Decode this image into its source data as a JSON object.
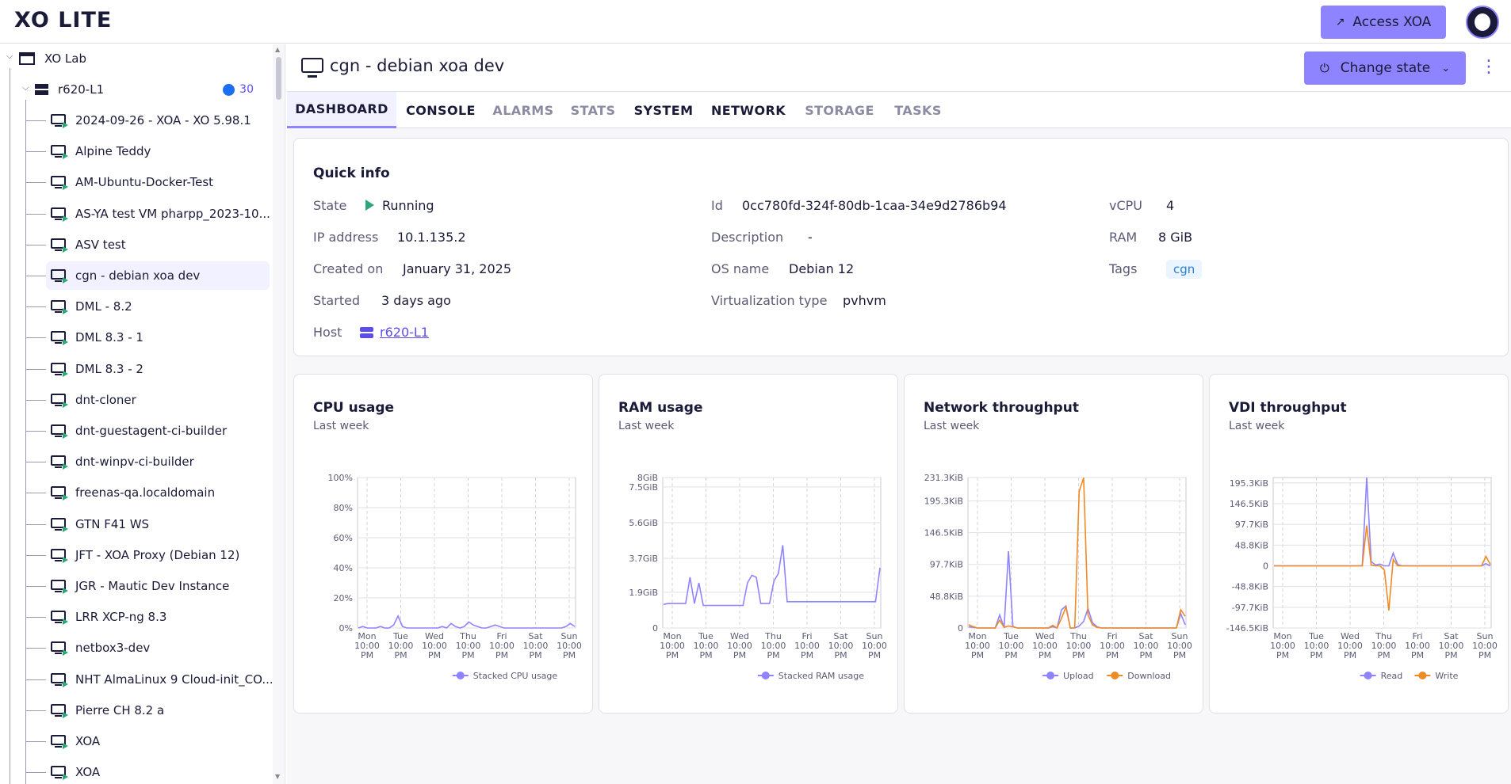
{
  "app": {
    "logo": "XO LITE",
    "access_label": "Access XOA"
  },
  "sidebar": {
    "pool": "XO Lab",
    "host": "r620-L1",
    "host_badge": "30",
    "vms": [
      "2024-09-26 - XOA - XO 5.98.1",
      "Alpine Teddy",
      "AM-Ubuntu-Docker-Test",
      "AS-YA test VM pharpp_2023-10...",
      "ASV test",
      "cgn - debian xoa dev",
      "DML - 8.2",
      "DML 8.3 - 1",
      "DML 8.3 - 2",
      "dnt-cloner",
      "dnt-guestagent-ci-builder",
      "dnt-winpv-ci-builder",
      "freenas-qa.localdomain",
      "GTN F41 WS",
      "JFT - XOA Proxy (Debian 12)",
      "JGR - Mautic Dev Instance",
      "LRR XCP-ng 8.3",
      "netbox3-dev",
      "NHT AlmaLinux 9 Cloud-init_CO...",
      "Pierre CH 8.2 a",
      "XOA",
      "XOA"
    ]
  },
  "vm": {
    "title": "cgn - debian xoa dev",
    "change_state_label": "Change state"
  },
  "tabs": [
    "DASHBOARD",
    "CONSOLE",
    "ALARMS",
    "STATS",
    "SYSTEM",
    "NETWORK",
    "STORAGE",
    "TASKS"
  ],
  "quick_info": {
    "title": "Quick info",
    "state_label": "State",
    "state": "Running",
    "ip_label": "IP address",
    "ip": "10.1.135.2",
    "created_label": "Created on",
    "created": "January 31, 2025",
    "started_label": "Started",
    "started": "3 days ago",
    "host_label": "Host",
    "host": "r620-L1",
    "id_label": "Id",
    "id": "0cc780fd-324f-80db-1caa-34e9d2786b94",
    "desc_label": "Description",
    "desc": "-",
    "os_label": "OS name",
    "os": "Debian 12",
    "virt_label": "Virtualization type",
    "virt": "pvhvm",
    "vcpu_label": "vCPU",
    "vcpu": "4",
    "ram_label": "RAM",
    "ram": "8 GiB",
    "tags_label": "Tags",
    "tag": "cgn"
  },
  "chart_data": [
    {
      "type": "line",
      "title": "CPU usage",
      "subtitle": "Last week",
      "days": [
        "Mon",
        "Tue",
        "Wed",
        "Thu",
        "Fri",
        "Sat",
        "Sun"
      ],
      "time_label": "10:00 PM",
      "yticks": [
        "100%",
        "80%",
        "60%",
        "40%",
        "20%",
        "0%"
      ],
      "ylim": [
        0,
        100
      ],
      "series": [
        {
          "name": "Stacked CPU usage",
          "color": "#8f84ff",
          "values": [
            0,
            1,
            0,
            0,
            0,
            1,
            0,
            0,
            2,
            8,
            1,
            0,
            0,
            0,
            0,
            0,
            0,
            0,
            0,
            1,
            0,
            3,
            1,
            0,
            1,
            4,
            2,
            1,
            0,
            0,
            1,
            2,
            1,
            0,
            0,
            0,
            0,
            0,
            0,
            0,
            0,
            0,
            0,
            0,
            0,
            0,
            0,
            1,
            3,
            1
          ]
        }
      ]
    },
    {
      "type": "line",
      "title": "RAM usage",
      "subtitle": "Last week",
      "days": [
        "Mon",
        "Tue",
        "Wed",
        "Thu",
        "Fri",
        "Sat",
        "Sun"
      ],
      "time_label": "10:00 PM",
      "yticks": [
        "8GiB",
        "7.5GiB",
        "5.6GiB",
        "3.7GiB",
        "1.9GiB",
        "0"
      ],
      "ylim": [
        0,
        8
      ],
      "series": [
        {
          "name": "Stacked RAM usage",
          "color": "#8f84ff",
          "values": [
            1.25,
            1.3,
            1.3,
            1.3,
            1.3,
            1.3,
            2.7,
            1.3,
            2.4,
            1.2,
            1.2,
            1.2,
            1.2,
            1.2,
            1.2,
            1.2,
            1.2,
            1.2,
            1.2,
            2.4,
            2.8,
            2.7,
            1.3,
            1.3,
            1.3,
            2.5,
            2.9,
            4.4,
            1.4,
            1.4,
            1.4,
            1.4,
            1.4,
            1.4,
            1.4,
            1.4,
            1.4,
            1.4,
            1.4,
            1.4,
            1.4,
            1.4,
            1.4,
            1.4,
            1.4,
            1.4,
            1.4,
            1.4,
            1.4,
            3.2
          ]
        }
      ]
    },
    {
      "type": "line",
      "title": "Network throughput",
      "subtitle": "Last week",
      "days": [
        "Mon",
        "Tue",
        "Wed",
        "Thu",
        "Fri",
        "Sat",
        "Sun"
      ],
      "time_label": "10:00 PM",
      "yticks": [
        "231.3KiB",
        "195.3KiB",
        "146.5KiB",
        "97.7KiB",
        "48.8KiB",
        "0"
      ],
      "ylim": [
        0,
        231.3
      ],
      "series": [
        {
          "name": "Upload",
          "color": "#8f84ff",
          "values": [
            2,
            1,
            0,
            0,
            0,
            0,
            0,
            20,
            1,
            118,
            2,
            0,
            0,
            0,
            0,
            0,
            0,
            0,
            0,
            2,
            0,
            28,
            34,
            0,
            0,
            3,
            10,
            30,
            8,
            2,
            0,
            0,
            0,
            0,
            0,
            0,
            0,
            0,
            0,
            0,
            0,
            0,
            0,
            0,
            0,
            0,
            0,
            0,
            22,
            5
          ]
        },
        {
          "name": "Download",
          "color": "#f08a24",
          "values": [
            5,
            2,
            0,
            0,
            0,
            0,
            0,
            12,
            1,
            3,
            2,
            0,
            0,
            0,
            0,
            0,
            0,
            0,
            0,
            4,
            0,
            15,
            32,
            0,
            0,
            210,
            231,
            20,
            5,
            1,
            0,
            0,
            0,
            0,
            0,
            0,
            0,
            0,
            0,
            0,
            0,
            0,
            0,
            0,
            0,
            0,
            0,
            0,
            28,
            18
          ]
        }
      ]
    },
    {
      "type": "line",
      "title": "VDI throughput",
      "subtitle": "Last week",
      "days": [
        "Mon",
        "Tue",
        "Wed",
        "Thu",
        "Fri",
        "Sat",
        "Sun"
      ],
      "time_label": "10:00 PM",
      "yticks": [
        "195.3KiB",
        "146.5KiB",
        "97.7KiB",
        "48.8KiB",
        "0",
        "-48.8KiB",
        "-97.7KiB",
        "-146.5KiB"
      ],
      "ylim": [
        -146.5,
        208
      ],
      "series": [
        {
          "name": "Read",
          "color": "#8f84ff",
          "values": [
            0,
            0,
            0,
            0,
            0,
            0,
            0,
            0,
            0,
            0,
            0,
            0,
            0,
            0,
            0,
            0,
            0,
            0,
            0,
            0,
            0,
            208,
            10,
            2,
            4,
            0,
            0,
            30,
            3,
            0,
            0,
            0,
            0,
            0,
            0,
            0,
            0,
            0,
            0,
            0,
            0,
            0,
            0,
            0,
            0,
            0,
            0,
            0,
            5,
            0
          ]
        },
        {
          "name": "Write",
          "color": "#f08a24",
          "values": [
            0,
            0,
            0,
            0,
            0,
            0,
            0,
            0,
            0,
            0,
            0,
            0,
            0,
            0,
            0,
            0,
            0,
            0,
            0,
            0,
            0,
            95,
            2,
            0,
            0,
            -10,
            -105,
            15,
            0,
            0,
            0,
            0,
            0,
            0,
            0,
            0,
            0,
            0,
            0,
            0,
            0,
            0,
            0,
            0,
            0,
            0,
            0,
            0,
            22,
            3
          ]
        }
      ]
    }
  ]
}
